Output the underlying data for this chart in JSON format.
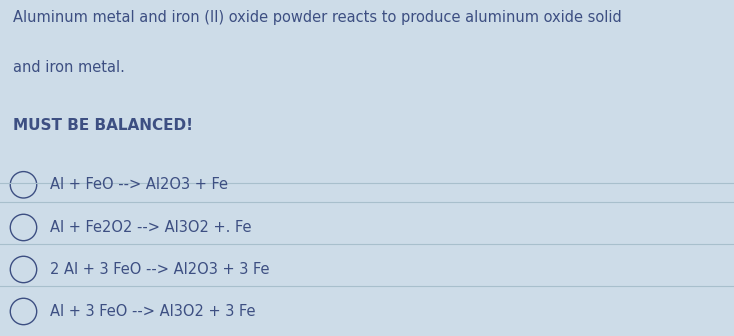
{
  "background_color": "#cddce8",
  "title_line1": "Aluminum metal and iron (II) oxide powder reacts to produce aluminum oxide solid",
  "title_line2": "and iron metal.",
  "subtitle": "MUST BE BALANCED!",
  "options": [
    "Al + FeO --> Al2O3 + Fe",
    "Al + Fe2O2 --> Al3O2 +. Fe",
    "2 Al + 3 FeO --> Al2O3 + 3 Fe",
    "Al + 3 FeO --> Al3O2 + 3 Fe"
  ],
  "text_color": "#3d4f82",
  "title_fontsize": 10.5,
  "subtitle_fontsize": 11,
  "option_fontsize": 10.5,
  "divider_color": "#a8bfcc",
  "circle_color": "#3d4f82",
  "figsize": [
    7.34,
    3.36
  ],
  "dpi": 100
}
